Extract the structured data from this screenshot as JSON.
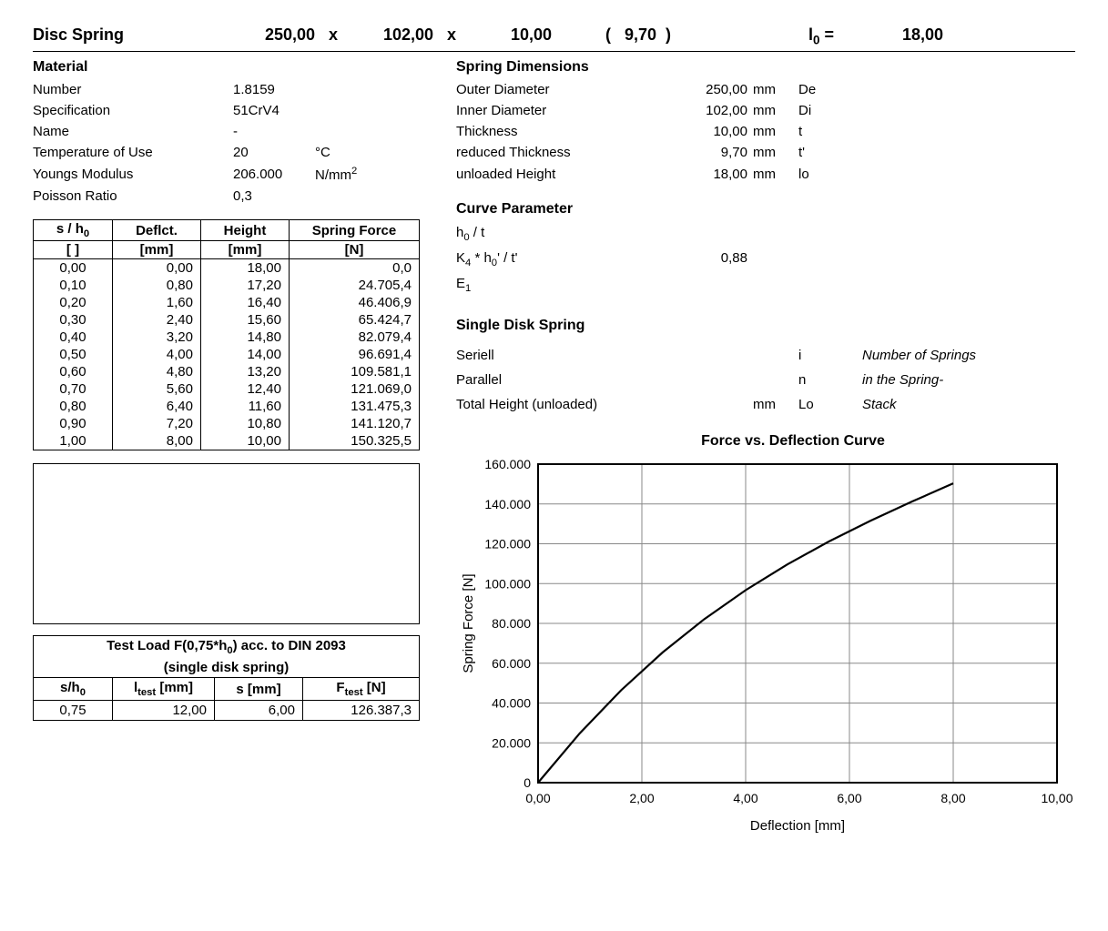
{
  "header": {
    "title": "Disc Spring",
    "d1": "250,00",
    "d2": "102,00",
    "d3": "10,00",
    "paren": "(   9,70  )",
    "l0_label_html": "l<sub>0</sub> =",
    "l0_val": "18,00",
    "x": "x"
  },
  "material": {
    "title": "Material",
    "rows": [
      {
        "label": "Number",
        "val": "1.8159",
        "unit": ""
      },
      {
        "label": "Specification",
        "val": "51CrV4",
        "unit": ""
      },
      {
        "label": "Name",
        "val": "-",
        "unit": ""
      },
      {
        "label": "Temperature of Use",
        "val": "20",
        "unit": "°C"
      },
      {
        "label": "Youngs Modulus",
        "val": "206.000",
        "unit_html": "N/mm<sup>2</sup>"
      },
      {
        "label": "Poisson Ratio",
        "val": "0,3",
        "unit": ""
      }
    ]
  },
  "spring_dims": {
    "title": "Spring Dimensions",
    "rows": [
      {
        "label": "Outer Diameter",
        "val": "250,00",
        "unit": "mm",
        "sym": "De"
      },
      {
        "label": "Inner Diameter",
        "val": "102,00",
        "unit": "mm",
        "sym": "Di"
      },
      {
        "label": "Thickness",
        "val": "10,00",
        "unit": "mm",
        "sym": "t"
      },
      {
        "label": "reduced Thickness",
        "val": "9,70",
        "unit": "mm",
        "sym": "t'"
      },
      {
        "label": "unloaded Height",
        "val": "18,00",
        "unit": "mm",
        "sym": "lo"
      }
    ]
  },
  "curve_param": {
    "title": "Curve Parameter",
    "rows": [
      {
        "label_html": "h<sub>0</sub> / t",
        "val": ""
      },
      {
        "label_html": "K<sub>4</sub> * h<sub>0</sub>' / t'",
        "val": "0,88"
      },
      {
        "label_html": "E<sub>1</sub>",
        "val": ""
      }
    ]
  },
  "single_disk": {
    "title": "Single Disk Spring",
    "rows": [
      {
        "label": "Seriell",
        "val": "",
        "unit": "",
        "sym": "i",
        "note": "Number of Springs"
      },
      {
        "label": "Parallel",
        "val": "",
        "unit": "",
        "sym": "n",
        "note": "in the Spring-"
      },
      {
        "label": "Total Height (unloaded)",
        "val": "",
        "unit": "mm",
        "sym": "Lo",
        "note": "Stack"
      }
    ]
  },
  "table": {
    "headers": {
      "c1_html": "s / h<sub>0</sub>",
      "c1u": "[ ]",
      "c2": "Deflct.",
      "c2u": "[mm]",
      "c3": "Height",
      "c3u": "[mm]",
      "c4": "Spring Force",
      "c4u": "[N]"
    },
    "rows": [
      [
        "0,00",
        "0,00",
        "18,00",
        "0,0"
      ],
      [
        "0,10",
        "0,80",
        "17,20",
        "24.705,4"
      ],
      [
        "0,20",
        "1,60",
        "16,40",
        "46.406,9"
      ],
      [
        "0,30",
        "2,40",
        "15,60",
        "65.424,7"
      ],
      [
        "0,40",
        "3,20",
        "14,80",
        "82.079,4"
      ],
      [
        "0,50",
        "4,00",
        "14,00",
        "96.691,4"
      ],
      [
        "0,60",
        "4,80",
        "13,20",
        "109.581,1"
      ],
      [
        "0,70",
        "5,60",
        "12,40",
        "121.069,0"
      ],
      [
        "0,80",
        "6,40",
        "11,60",
        "131.475,3"
      ],
      [
        "0,90",
        "7,20",
        "10,80",
        "141.120,7"
      ],
      [
        "1,00",
        "8,00",
        "10,00",
        "150.325,5"
      ]
    ]
  },
  "test": {
    "title_html": "Test Load F(0,75*h<sub>0</sub>) acc. to DIN 2093",
    "subtitle": "(single disk spring)",
    "headers": {
      "c1_html": "s/h<sub>0</sub>",
      "c2_html": "l<sub>test</sub> [mm]",
      "c3": "s [mm]",
      "c4_html": "F<sub>test</sub> [N]"
    },
    "row": [
      "0,75",
      "12,00",
      "6,00",
      "126.387,3"
    ]
  },
  "chart": {
    "title": "Force vs. Deflection Curve",
    "xlabel": "Deflection [mm]",
    "ylabel": "Spring Force [N]",
    "type": "line",
    "xlim": [
      0,
      10
    ],
    "xtick_step": 2,
    "xtick_labels": [
      "0,00",
      "2,00",
      "4,00",
      "6,00",
      "8,00",
      "10,00"
    ],
    "ylim": [
      0,
      160000
    ],
    "ytick_step": 20000,
    "ytick_labels": [
      "0",
      "20.000",
      "40.000",
      "60.000",
      "80.000",
      "100.000",
      "120.000",
      "140.000",
      "160.000"
    ],
    "grid_color": "#888888",
    "axis_color": "#000000",
    "line_color": "#000000",
    "line_width": 2.2,
    "background": "#ffffff",
    "plot_border_width": 2,
    "font_size_ticks": 14,
    "font_size_labels": 15,
    "series_x": [
      0.0,
      0.8,
      1.6,
      2.4,
      3.2,
      4.0,
      4.8,
      5.6,
      6.4,
      7.2,
      8.0
    ],
    "series_y": [
      0,
      24705.4,
      46406.9,
      65424.7,
      82079.4,
      96691.4,
      109581.1,
      121069.0,
      131475.3,
      141120.7,
      150325.5
    ]
  }
}
